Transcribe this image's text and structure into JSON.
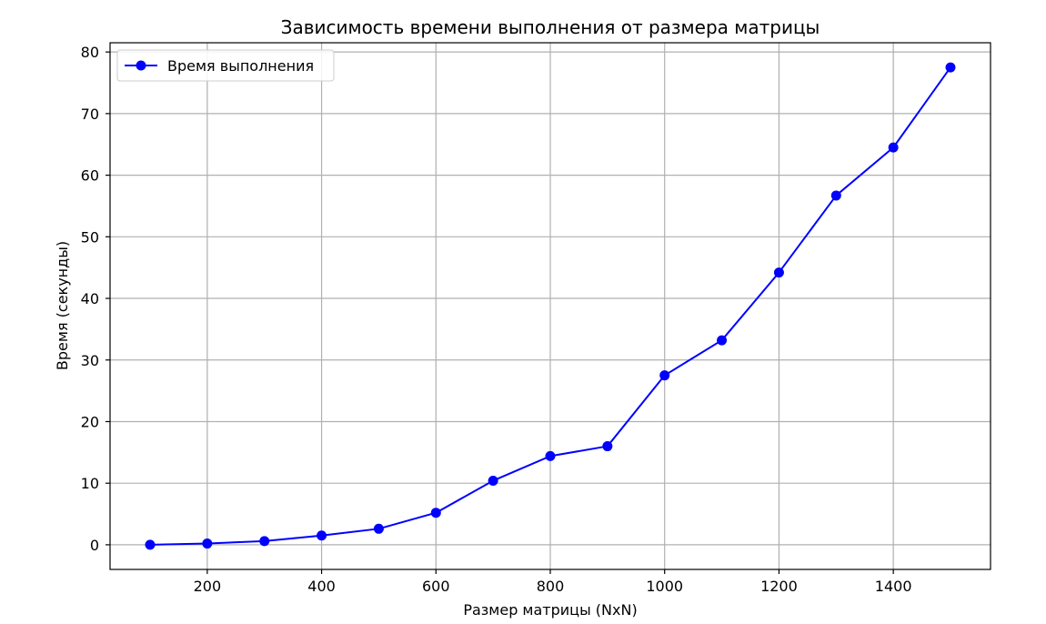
{
  "chart_data": {
    "type": "line",
    "title": "Зависимость времени выполнения от размера матрицы",
    "xlabel": "Размер матрицы (NxN)",
    "ylabel": "Время (секунды)",
    "x": [
      100,
      200,
      300,
      400,
      500,
      600,
      700,
      800,
      900,
      1000,
      1100,
      1200,
      1300,
      1400,
      1500
    ],
    "series": [
      {
        "name": "Время выполнения",
        "values": [
          0.0,
          0.2,
          0.6,
          1.5,
          2.6,
          5.2,
          10.4,
          14.4,
          16.0,
          27.5,
          33.2,
          44.2,
          56.7,
          64.5,
          77.5
        ],
        "color": "#0000ff",
        "marker": "circle"
      }
    ],
    "xlim": [
      30,
      1570
    ],
    "ylim": [
      -4,
      81.5
    ],
    "xticks": [
      200,
      400,
      600,
      800,
      1000,
      1200,
      1400
    ],
    "yticks": [
      0,
      10,
      20,
      30,
      40,
      50,
      60,
      70,
      80
    ],
    "grid": true,
    "legend_position": "top-left",
    "colors": {
      "grid": "#b0b0b0",
      "axes": "#000000",
      "background": "#ffffff"
    }
  }
}
